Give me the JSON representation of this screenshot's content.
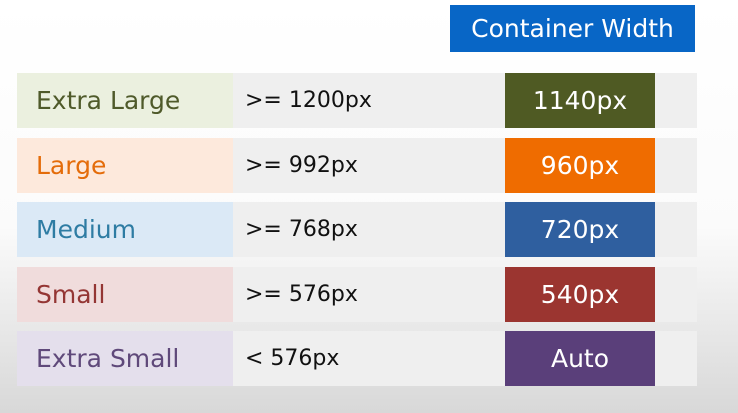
{
  "header": {
    "title": "Container Width"
  },
  "table": {
    "rows": [
      [
        "Extra Large",
        ">= 1200px",
        "1140px"
      ],
      [
        "Large",
        ">= 992px",
        "960px"
      ],
      [
        "Medium",
        ">= 768px",
        "720px"
      ],
      [
        "Small",
        ">= 576px",
        "540px"
      ],
      [
        "Extra Small",
        "< 576px",
        "Auto"
      ]
    ]
  }
}
